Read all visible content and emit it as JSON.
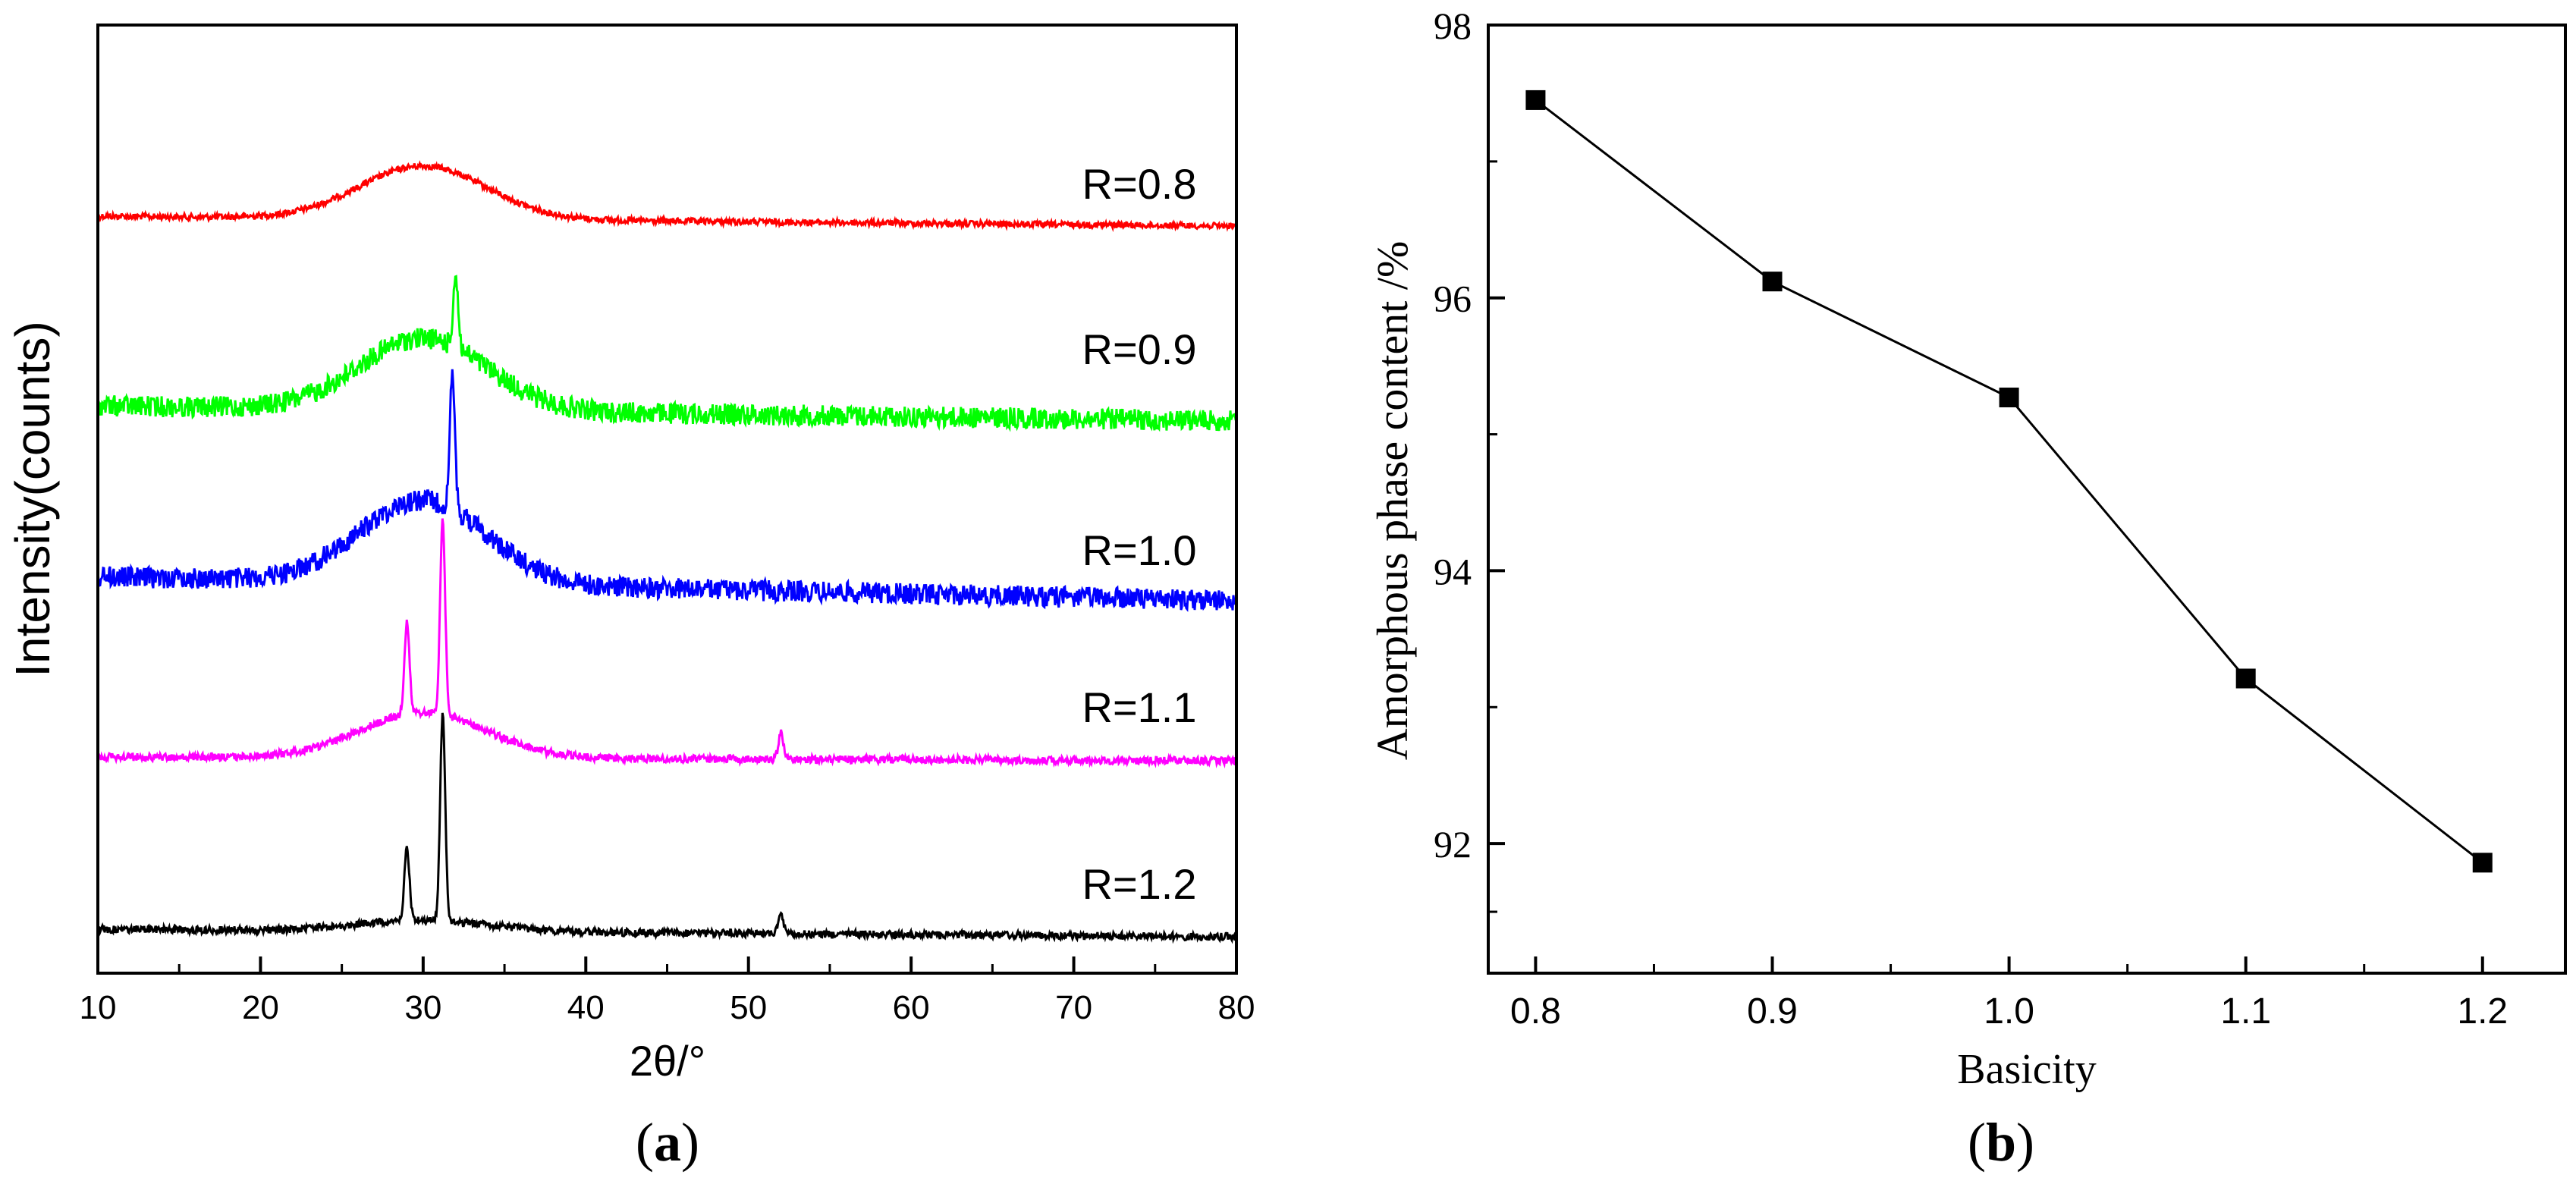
{
  "chart_data": [
    {
      "type": "line",
      "panel_label": "a",
      "xlabel": "2θ/°",
      "ylabel": "Intensity(counts)",
      "xlim": [
        10,
        80
      ],
      "xticks": [
        10,
        20,
        30,
        40,
        50,
        60,
        70,
        80
      ],
      "yticks_shown": false,
      "series": [
        {
          "name": "R=0.8",
          "color": "#ff0000",
          "peaks": []
        },
        {
          "name": "R=0.9",
          "color": "#00ff00",
          "peaks": [
            32.0
          ]
        },
        {
          "name": "R=1.0",
          "color": "#0000ff",
          "peaks": [
            31.8
          ]
        },
        {
          "name": "R=1.1",
          "color": "#ff00ff",
          "peaks": [
            29.0,
            31.2,
            52.0
          ]
        },
        {
          "name": "R=1.2",
          "color": "#000000",
          "peaks": [
            29.0,
            31.2,
            52.0
          ]
        }
      ]
    },
    {
      "type": "line",
      "panel_label": "b",
      "xlabel": "Basicity",
      "ylabel": "Amorphous phase content /%",
      "xlim": [
        0.78,
        1.235
      ],
      "ylim": [
        91.05,
        98.0
      ],
      "xticks": [
        "0.8",
        "0.9",
        "1.0",
        "1.1",
        "1.2"
      ],
      "yticks": [
        "92",
        "94",
        "96",
        "98"
      ],
      "marker": "square",
      "color": "#000000",
      "x": [
        0.8,
        0.9,
        1.0,
        1.1,
        1.2
      ],
      "y": [
        97.45,
        96.12,
        95.27,
        93.21,
        91.86
      ]
    }
  ]
}
